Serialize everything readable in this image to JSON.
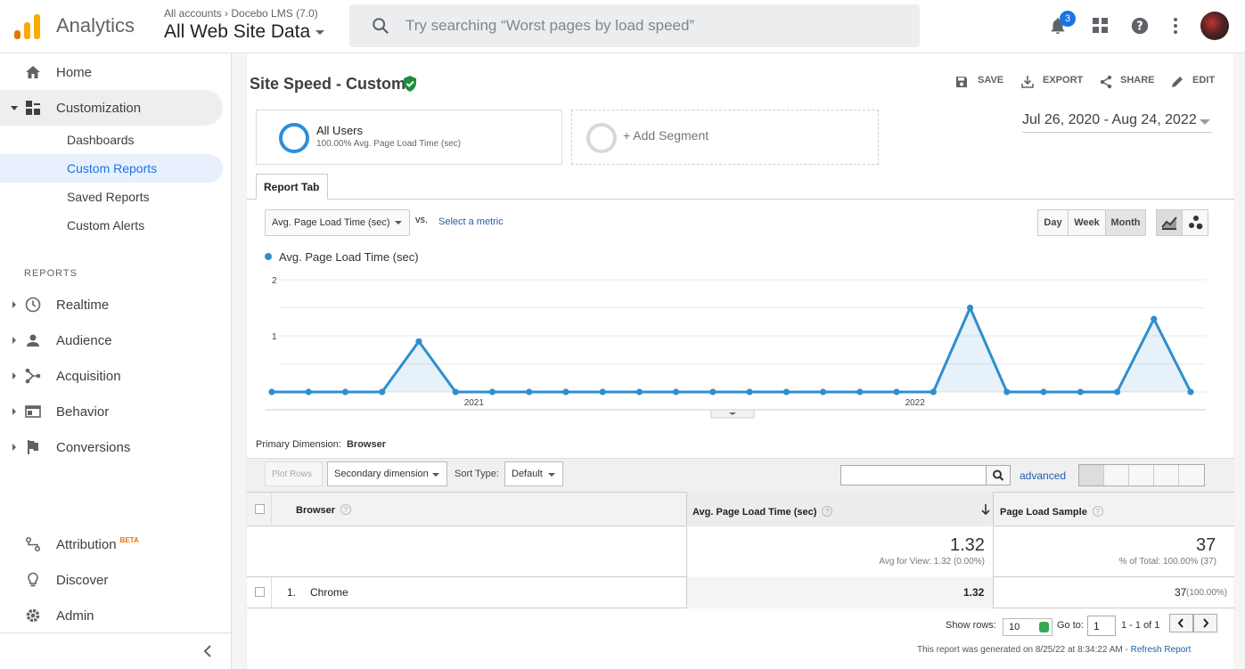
{
  "header": {
    "app_name": "Analytics",
    "account_breadcrumb": "All accounts  ›  Docebo LMS (7.0)",
    "view_name": "All Web Site Data",
    "search_placeholder": "Try searching “Worst pages by load speed”",
    "notification_count": "3"
  },
  "sidebar": {
    "home": "Home",
    "customization": "Customization",
    "customization_items": [
      "Dashboards",
      "Custom Reports",
      "Saved Reports",
      "Custom Alerts"
    ],
    "reports_header": "REPORTS",
    "report_items": [
      "Realtime",
      "Audience",
      "Acquisition",
      "Behavior",
      "Conversions"
    ],
    "attribution": "Attribution",
    "attribution_badge": "BETA",
    "discover": "Discover",
    "admin": "Admin"
  },
  "report": {
    "title": "Site Speed - Custom",
    "actions": [
      "SAVE",
      "EXPORT",
      "SHARE",
      "EDIT"
    ],
    "segment_name": "All Users",
    "segment_sub": "100.00% Avg. Page Load Time (sec)",
    "add_segment": "+ Add Segment",
    "date_range": "Jul 26, 2020 - Aug 24, 2022",
    "tab": "Report Tab",
    "metric": "Avg. Page Load Time (sec)",
    "vs": "vs.",
    "select_metric": "Select a metric",
    "granularity": [
      "Day",
      "Week",
      "Month"
    ],
    "granularity_selected": "Month",
    "legend": "Avg. Page Load Time (sec)"
  },
  "chart_data": {
    "type": "area",
    "series": [
      {
        "name": "Avg. Page Load Time (sec)",
        "values": [
          0,
          0,
          0,
          0,
          0.9,
          0,
          0,
          0,
          0,
          0,
          0,
          0,
          0,
          0,
          0,
          0,
          0,
          0,
          0,
          1.5,
          0,
          0,
          0,
          0,
          1.3,
          0
        ]
      }
    ],
    "y_ticks": [
      "2",
      "1"
    ],
    "x_labels": [
      "2021",
      "2022"
    ],
    "ylim": [
      0,
      2
    ],
    "color": "#2e8ecf",
    "grid": true
  },
  "table": {
    "primary_dimension_label": "Primary Dimension:",
    "primary_dimension": "Browser",
    "plot_rows": "Plot Rows",
    "secondary_dimension": "Secondary dimension",
    "sort_type_label": "Sort Type:",
    "sort_type": "Default",
    "advanced": "advanced",
    "columns": [
      "Browser",
      "Avg. Page Load Time (sec)",
      "Page Load Sample"
    ],
    "totals": {
      "avg": "1.32",
      "avg_sub": "Avg for View: 1.32 (0.00%)",
      "sample": "37",
      "sample_sub": "% of Total: 100.00% (37)"
    },
    "rows": [
      {
        "num": "1.",
        "browser": "Chrome",
        "avg": "1.32",
        "sample": "37",
        "sample_pct": "(100.00%)"
      }
    ],
    "show_rows_label": "Show rows:",
    "show_rows": "10",
    "goto_label": "Go to:",
    "goto": "1",
    "range": "1 - 1 of 1",
    "footer": "This report was generated on 8/25/22 at 8:34:22 AM - ",
    "refresh": "Refresh Report"
  }
}
